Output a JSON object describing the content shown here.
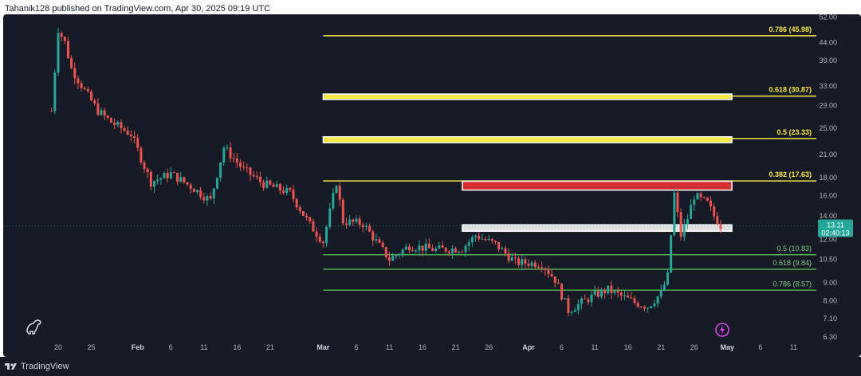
{
  "header": {
    "text": "Tahanik128 published on TradingView.com, Apr 30, 2025 09:19 UTC"
  },
  "footer": {
    "brand": "TradingView"
  },
  "colors": {
    "background": "#161a25",
    "fib_upper": "#f5e642",
    "fib_lower": "#4caf50",
    "resistance_zone": "#d32f2f",
    "support_zone": "#e0e0e0",
    "price_badge": "#26a69a",
    "candle_up": "#26a69a",
    "candle_down": "#ef5350"
  },
  "chart_data": {
    "type": "candlestick",
    "title": "",
    "y_scale": "log",
    "y_ticks": [
      "52.00",
      "44.00",
      "39.00",
      "33.00",
      "29.00",
      "25.00",
      "21.00",
      "18.00",
      "16.00",
      "14.00",
      "12.00",
      "10.50",
      "9.00",
      "8.00",
      "7.10",
      "6.30"
    ],
    "x_ticks": [
      "20",
      "25",
      "Feb",
      "6",
      "11",
      "16",
      "21",
      "Mar",
      "6",
      "11",
      "16",
      "21",
      "26",
      "Apr",
      "6",
      "11",
      "16",
      "21",
      "26",
      "May",
      "6",
      "11"
    ],
    "last_price": "13.11",
    "countdown": "02:40:13",
    "price_path": [
      {
        "x": "Jan 19",
        "y": 28
      },
      {
        "x": "Jan 20",
        "y": 48
      },
      {
        "x": "Jan 21",
        "y": 44
      },
      {
        "x": "Jan 22",
        "y": 37
      },
      {
        "x": "Jan 24",
        "y": 32
      },
      {
        "x": "Jan 26",
        "y": 28
      },
      {
        "x": "Jan 28",
        "y": 26
      },
      {
        "x": "Jan 31",
        "y": 24
      },
      {
        "x": "Feb 3",
        "y": 17.5
      },
      {
        "x": "Feb 6",
        "y": 18.5
      },
      {
        "x": "Feb 9",
        "y": 17
      },
      {
        "x": "Feb 12",
        "y": 15.5
      },
      {
        "x": "Feb 14",
        "y": 22
      },
      {
        "x": "Feb 17",
        "y": 19
      },
      {
        "x": "Feb 20",
        "y": 17.3
      },
      {
        "x": "Feb 24",
        "y": 16.3
      },
      {
        "x": "Feb 27",
        "y": 13.2
      },
      {
        "x": "Mar 1",
        "y": 11.8
      },
      {
        "x": "Mar 3",
        "y": 17.5
      },
      {
        "x": "Mar 4",
        "y": 13.5
      },
      {
        "x": "Mar 7",
        "y": 13.3
      },
      {
        "x": "Mar 11",
        "y": 10.5
      },
      {
        "x": "Mar 14",
        "y": 11.5
      },
      {
        "x": "Mar 18",
        "y": 11.2
      },
      {
        "x": "Mar 22",
        "y": 11.3
      },
      {
        "x": "Mar 24",
        "y": 12.3
      },
      {
        "x": "Mar 27",
        "y": 11.6
      },
      {
        "x": "Mar 30",
        "y": 10.3
      },
      {
        "x": "Apr 3",
        "y": 10.2
      },
      {
        "x": "Apr 5",
        "y": 9.2
      },
      {
        "x": "Apr 7",
        "y": 7.5
      },
      {
        "x": "Apr 9",
        "y": 7.9
      },
      {
        "x": "Apr 11",
        "y": 8.3
      },
      {
        "x": "Apr 13",
        "y": 8.6
      },
      {
        "x": "Apr 17",
        "y": 7.9
      },
      {
        "x": "Apr 19",
        "y": 7.7
      },
      {
        "x": "Apr 21",
        "y": 8.4
      },
      {
        "x": "Apr 22",
        "y": 9.4
      },
      {
        "x": "Apr 23",
        "y": 16.2
      },
      {
        "x": "Apr 24",
        "y": 12.3
      },
      {
        "x": "Apr 25",
        "y": 13.8
      },
      {
        "x": "Apr 26",
        "y": 16.0
      },
      {
        "x": "Apr 28",
        "y": 15.2
      },
      {
        "x": "Apr 29",
        "y": 14.0
      },
      {
        "x": "Apr 30",
        "y": 13.11
      }
    ],
    "fib_levels": [
      {
        "label": "0.786 (45.98)",
        "price": 45.98,
        "group": "upper"
      },
      {
        "label": "0.618 (30.87)",
        "price": 30.87,
        "group": "upper"
      },
      {
        "label": "0.5 (23.33)",
        "price": 23.33,
        "group": "upper"
      },
      {
        "label": "0.382 (17.63)",
        "price": 17.63,
        "group": "upper"
      },
      {
        "label": "0.5 (10.83)",
        "price": 10.83,
        "group": "lower"
      },
      {
        "label": "0.618 (9.84)",
        "price": 9.84,
        "group": "lower"
      },
      {
        "label": "0.786 (8.57)",
        "price": 8.57,
        "group": "lower"
      }
    ],
    "zones": [
      {
        "kind": "yellow",
        "from": "Mar 1",
        "to": "Apr 30",
        "low": 30.2,
        "high": 31.3
      },
      {
        "kind": "yellow",
        "from": "Mar 1",
        "to": "Apr 30",
        "low": 22.7,
        "high": 23.6
      },
      {
        "kind": "resistance",
        "from": "Mar 22",
        "to": "Apr 30",
        "low": 16.6,
        "high": 17.6
      },
      {
        "kind": "support",
        "from": "Mar 22",
        "to": "Apr 30",
        "low": 12.65,
        "high": 13.2
      }
    ]
  }
}
